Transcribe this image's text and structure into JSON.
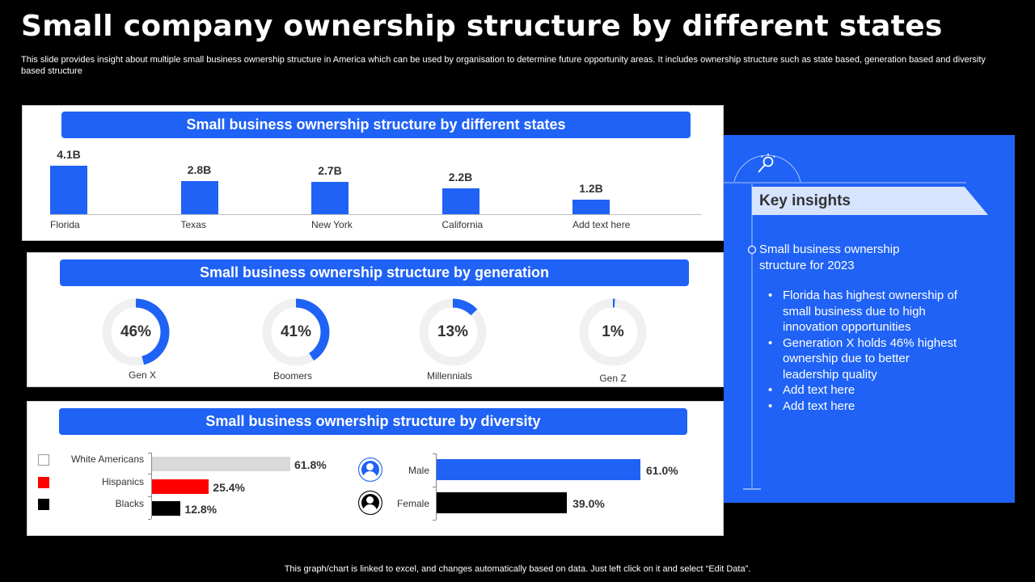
{
  "title": "Small company ownership structure by different states",
  "subtitle": "This slide provides insight about multiple small business ownership structure in America which can be used by organisation to determine future opportunity areas. It includes ownership structure such as state based, generation based and diversity based structure",
  "footer": "This graph/chart is linked to excel,  and changes automatically based on data. Just left click on it and select “Edit Data”.",
  "chart_data": [
    {
      "type": "bar",
      "title": "Small business ownership structure by different states",
      "categories": [
        "Florida",
        "Texas",
        "New York",
        "California",
        "Add text here"
      ],
      "values": [
        4.1,
        2.8,
        2.7,
        2.2,
        1.2
      ],
      "value_labels": [
        "4.1B",
        "2.8B",
        "2.7B",
        "2.2B",
        "1.2B"
      ],
      "ylim": [
        0,
        4.1
      ],
      "color": "#1f62f5"
    },
    {
      "type": "pie",
      "title": "Small business ownership structure by generation",
      "categories": [
        "Gen X",
        "Boomers",
        "Millennials",
        "Gen Z"
      ],
      "values": [
        46,
        41,
        13,
        1
      ],
      "value_labels": [
        "46%",
        "41%",
        "13%",
        "1%"
      ],
      "color": "#1f62f5",
      "track_color": "#f0f0f0"
    },
    {
      "type": "bar",
      "title": "Small business ownership structure by diversity",
      "categories": [
        "White Americans",
        "Hispanics",
        "Blacks"
      ],
      "values": [
        61.8,
        25.4,
        12.8
      ],
      "value_labels": [
        "61.8%",
        "25.4%",
        "12.8%"
      ],
      "colors": [
        "#d9d9d9",
        "#ff0000",
        "#000000"
      ]
    },
    {
      "type": "bar",
      "categories": [
        "Male",
        "Female"
      ],
      "values": [
        61.0,
        39.0
      ],
      "value_labels": [
        "61.0%",
        "39.0%"
      ],
      "colors": [
        "#1f62f5",
        "#000000"
      ],
      "icons": [
        "male-avatar-icon",
        "female-avatar-icon"
      ]
    }
  ],
  "insights": {
    "heading": "Key insights",
    "intro": "Small business ownership structure  for 2023",
    "bullets": [
      "Florida has highest ownership of small business due to high innovation opportunities",
      "Generation X holds 46% highest ownership due to better leadership quality",
      "Add text here",
      "Add text here"
    ],
    "icon": "lightbulb-search-icon"
  },
  "colors": {
    "accent": "#1f62f5",
    "background": "#000000",
    "insights_header": "#d6e4ff"
  }
}
